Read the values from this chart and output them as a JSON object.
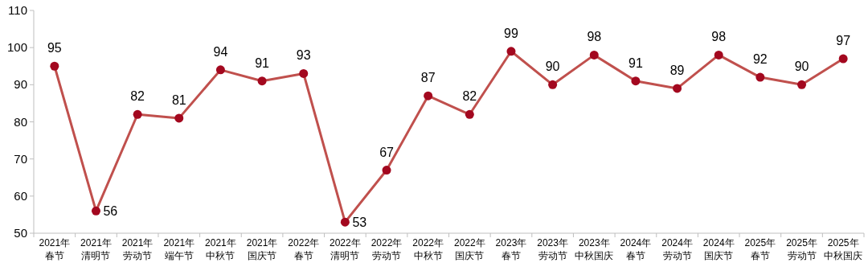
{
  "chart_data": {
    "type": "line",
    "categories": [
      "2021年春节",
      "2021年清明节",
      "2021年劳动节",
      "2021年端午节",
      "2021年中秋节",
      "2021年国庆节",
      "2022年春节",
      "2022年清明节",
      "2022年劳动节",
      "2022年中秋节",
      "2022年国庆节",
      "2023年春节",
      "2023年劳动节",
      "2023年中秋国庆",
      "2024年春节",
      "2024年劳动节",
      "2024年国庆节",
      "2025年春节",
      "2025年劳动节",
      "2025年中秋国庆"
    ],
    "series": [
      {
        "color": "#c0504d",
        "values": [
          95,
          56,
          82,
          81,
          94,
          91,
          93,
          53,
          67,
          87,
          82,
          99,
          90,
          98,
          91,
          89,
          98,
          92,
          90,
          97
        ]
      }
    ],
    "marker": "circle",
    "line_style": "solid",
    "data_labels": true,
    "grid": false,
    "ylim": [
      50,
      110
    ],
    "yticks": [
      50,
      60,
      70,
      80,
      90,
      100,
      110
    ]
  }
}
